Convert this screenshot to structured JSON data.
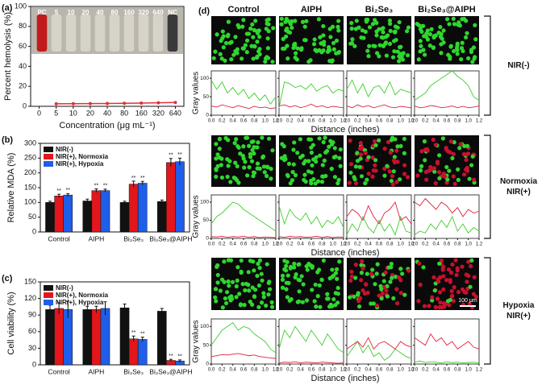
{
  "chart_data": [
    {
      "type": "line",
      "panel_label": "(a)",
      "xlabel": "Concentration (μg mL⁻¹)",
      "ylabel": "Percent hemolysis (%)",
      "tube_labels": [
        "PC",
        "5",
        "10",
        "20",
        "40",
        "80",
        "160",
        "320",
        "640",
        "NC"
      ],
      "categories": [
        "0",
        "5",
        "10",
        "20",
        "40",
        "80",
        "160",
        "320",
        "640"
      ],
      "values": [
        null,
        2.5,
        2.6,
        2.7,
        2.8,
        3.0,
        3.2,
        3.5,
        3.8
      ],
      "color": "#e0303a",
      "ylim": [
        0,
        100
      ],
      "yticks": [
        0,
        20,
        40,
        60,
        80,
        100
      ]
    },
    {
      "type": "grouped-bar",
      "panel_label": "(b)",
      "ylabel": "Relative MDA (%)",
      "categories": [
        "Control",
        "AIPH",
        "Bi₂Se₃",
        "Bi₂Se₃@AIPH"
      ],
      "series": [
        {
          "name": "NIR(-)",
          "color": "#111111",
          "values": [
            100,
            105,
            100,
            103
          ],
          "errors": [
            4,
            6,
            4,
            5
          ]
        },
        {
          "name": "NIR(+), Normoxia",
          "color": "#e3161b",
          "values": [
            122,
            140,
            162,
            235
          ],
          "errors": [
            6,
            6,
            10,
            14
          ],
          "marks": [
            "**",
            "**",
            "**",
            "**"
          ]
        },
        {
          "name": "NIR(+), Hypoxia",
          "color": "#1f5ee8",
          "values": [
            125,
            140,
            165,
            238
          ],
          "errors": [
            5,
            5,
            6,
            12
          ],
          "marks": [
            "**",
            "**",
            "**",
            "**"
          ]
        }
      ],
      "ylim": [
        0,
        300
      ],
      "yticks": [
        0,
        50,
        100,
        150,
        200,
        250,
        300
      ]
    },
    {
      "type": "grouped-bar",
      "panel_label": "(c)",
      "ylabel": "Cell viability (%)",
      "categories": [
        "Control",
        "AIPH",
        "Bi₂Se₃",
        "Bi₂Se₃@AIPH"
      ],
      "series": [
        {
          "name": "NIR(-)",
          "color": "#111111",
          "values": [
            100,
            100,
            103,
            97
          ],
          "errors": [
            8,
            6,
            7,
            5
          ]
        },
        {
          "name": "NIR(+), Normoxia",
          "color": "#e3161b",
          "values": [
            102,
            100,
            47,
            8
          ],
          "errors": [
            10,
            6,
            5,
            2
          ],
          "marks": [
            null,
            null,
            "**",
            "**"
          ]
        },
        {
          "name": "NIR(+), Hypoxia",
          "color": "#1f5ee8",
          "values": [
            100,
            102,
            46,
            7
          ],
          "errors": [
            15,
            12,
            4,
            2
          ],
          "marks": [
            null,
            null,
            "**",
            "**"
          ]
        }
      ],
      "ylim": [
        0,
        150
      ],
      "yticks": [
        0,
        30,
        60,
        90,
        120,
        150
      ]
    },
    {
      "type": "small-multiples",
      "panel_label": "(d)",
      "columns": [
        "Control",
        "AIPH",
        "Bi₂Se₃",
        "Bi₂Se₃@AIPH"
      ],
      "rows": [
        [
          "NIR(-)"
        ],
        [
          "Normoxia",
          "NIR(+)"
        ],
        [
          "Hypoxia",
          "NIR(+)"
        ]
      ],
      "scale_bar": "100 μm",
      "xlabel": "Distance (inches)",
      "ylabel": "Gray values",
      "x": [
        0,
        0.1,
        0.2,
        0.3,
        0.4,
        0.5,
        0.6,
        0.7,
        0.8,
        0.9,
        1.0,
        1.1,
        1.2
      ],
      "xlim": [
        0,
        1.2
      ],
      "xticks": [
        {
          "value": 0,
          "label": "0.0"
        },
        0.2,
        0.4,
        0.6,
        0.8,
        {
          "value": 1,
          "label": "1.0"
        },
        1.2
      ],
      "ylim": [
        0,
        120
      ],
      "yticks": [
        0,
        50,
        100
      ],
      "plots": [
        [
          {
            "series": [
              {
                "color": "#3ccf2a",
                "values": [
                  95,
                  70,
                  90,
                  60,
                  75,
                  55,
                  70,
                  45,
                  60,
                  40,
                  55,
                  30,
                  50
                ]
              },
              {
                "color": "#e0203a",
                "values": [
                  25,
                  22,
                  28,
                  24,
                  20,
                  26,
                  22,
                  18,
                  24,
                  20,
                  22,
                  18,
                  20
                ]
              }
            ]
          },
          {
            "series": [
              {
                "color": "#3ccf2a",
                "values": [
                  20,
                  90,
                  85,
                  75,
                  80,
                  70,
                  85,
                  65,
                  75,
                  80,
                  60,
                  70,
                  65
                ]
              },
              {
                "color": "#e0203a",
                "values": [
                  25,
                  28,
                  22,
                  26,
                  20,
                  24,
                  30,
                  22,
                  26,
                  20,
                  24,
                  22,
                  20
                ]
              }
            ]
          },
          {
            "series": [
              {
                "color": "#3ccf2a",
                "values": [
                  70,
                  95,
                  60,
                  85,
                  50,
                  75,
                  80,
                  60,
                  90,
                  55,
                  70,
                  65,
                  60
                ]
              },
              {
                "color": "#e0203a",
                "values": [
                  25,
                  20,
                  28,
                  22,
                  26,
                  20,
                  24,
                  28,
                  22,
                  20,
                  24,
                  22,
                  20
                ]
              }
            ]
          },
          {
            "series": [
              {
                "color": "#3ccf2a",
                "values": [
                  40,
                  50,
                  60,
                  80,
                  90,
                  100,
                  110,
                  120,
                  105,
                  95,
                  80,
                  50,
                  40
                ]
              },
              {
                "color": "#e0203a",
                "values": [
                  25,
                  20,
                  22,
                  26,
                  24,
                  20,
                  22,
                  25,
                  20,
                  24,
                  20,
                  22,
                  25
                ]
              }
            ]
          }
        ],
        [
          {
            "series": [
              {
                "color": "#3ccf2a",
                "values": [
                  40,
                  60,
                  70,
                  85,
                  100,
                  95,
                  80,
                  70,
                  60,
                  50,
                  40,
                  30,
                  20
                ]
              },
              {
                "color": "#e0203a",
                "values": [
                  5,
                  4,
                  6,
                  3,
                  5,
                  4,
                  6,
                  3,
                  5,
                  2,
                  4,
                  3,
                  2
                ]
              }
            ]
          },
          {
            "series": [
              {
                "color": "#3ccf2a",
                "values": [
                  90,
                  40,
                  80,
                  60,
                  50,
                  70,
                  40,
                  60,
                  30,
                  50,
                  40,
                  60,
                  30
                ]
              },
              {
                "color": "#e0203a",
                "values": [
                  5,
                  3,
                  6,
                  4,
                  5,
                  3,
                  4,
                  6,
                  3,
                  5,
                  2,
                  4,
                  3
                ]
              }
            ]
          },
          {
            "series": [
              {
                "color": "#3ccf2a",
                "values": [
                  10,
                  40,
                  20,
                  60,
                  30,
                  15,
                  50,
                  20,
                  40,
                  10,
                  60,
                  20,
                  15
                ]
              },
              {
                "color": "#e0203a",
                "values": [
                  60,
                  80,
                  70,
                  50,
                  90,
                  60,
                  40,
                  70,
                  80,
                  100,
                  50,
                  60,
                  40
                ]
              }
            ]
          },
          {
            "series": [
              {
                "color": "#3ccf2a",
                "values": [
                  10,
                  20,
                  15,
                  40,
                  25,
                  50,
                  30,
                  60,
                  20,
                  40,
                  15,
                  30,
                  20
                ]
              },
              {
                "color": "#e0203a",
                "values": [
                  100,
                  90,
                  110,
                  95,
                  80,
                  100,
                  90,
                  70,
                  85,
                  60,
                  80,
                  70,
                  75
                ]
              }
            ]
          }
        ],
        [
          {
            "series": [
              {
                "color": "#3ccf2a",
                "values": [
                  50,
                  70,
                  90,
                  100,
                  110,
                  90,
                  100,
                  95,
                  80,
                  70,
                  60,
                  40,
                  30
                ]
              },
              {
                "color": "#e0203a",
                "values": [
                  20,
                  22,
                  25,
                  24,
                  26,
                  28,
                  25,
                  22,
                  24,
                  20,
                  18,
                  16,
                  15
                ]
              }
            ]
          },
          {
            "series": [
              {
                "color": "#3ccf2a",
                "values": [
                  40,
                  90,
                  70,
                  100,
                  80,
                  60,
                  90,
                  70,
                  50,
                  80,
                  60,
                  40,
                  30
                ]
              },
              {
                "color": "#e0203a",
                "values": [
                  3,
                  5,
                  4,
                  6,
                  3,
                  5,
                  4,
                  3,
                  5,
                  4,
                  3,
                  2,
                  3
                ]
              }
            ]
          },
          {
            "series": [
              {
                "color": "#3ccf2a",
                "values": [
                  20,
                  40,
                  60,
                  30,
                  50,
                  20,
                  30,
                  10,
                  20,
                  40,
                  30,
                  20,
                  15
                ]
              },
              {
                "color": "#e0203a",
                "values": [
                  40,
                  50,
                  60,
                  45,
                  70,
                  40,
                  55,
                  60,
                  50,
                  40,
                  60,
                  50,
                  45
                ]
              }
            ]
          },
          {
            "series": [
              {
                "color": "#3ccf2a",
                "values": [
                  5,
                  8,
                  4,
                  6,
                  5,
                  3,
                  6,
                  4,
                  5,
                  3,
                  4,
                  5,
                  3
                ]
              },
              {
                "color": "#e0203a",
                "values": [
                  70,
                  60,
                  50,
                  80,
                  60,
                  70,
                  50,
                  60,
                  40,
                  50,
                  60,
                  45,
                  40
                ]
              }
            ]
          }
        ]
      ]
    }
  ]
}
